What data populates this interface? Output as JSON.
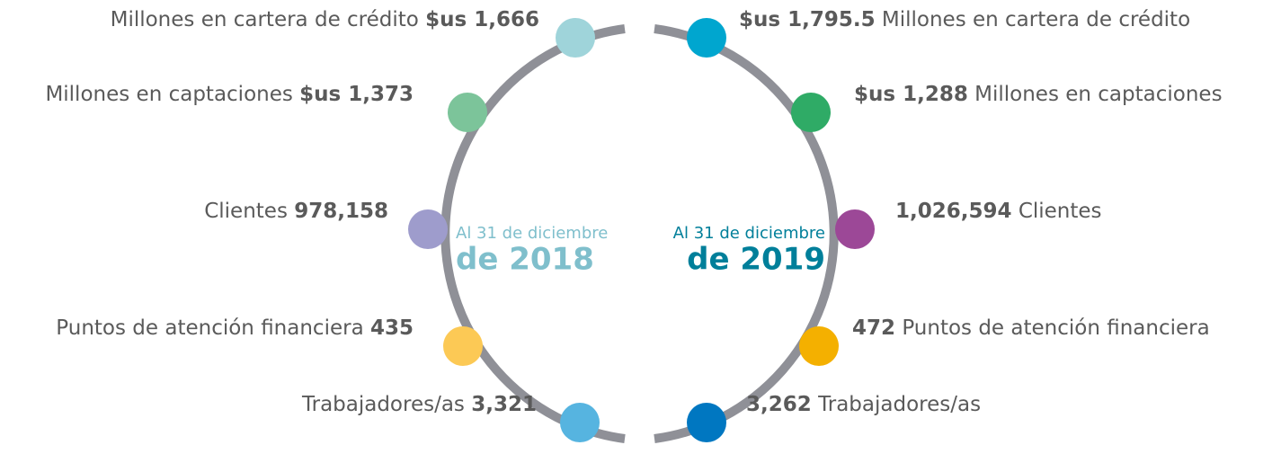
{
  "left": {
    "heading": "Al 31 de diciembre",
    "year": "de 2018",
    "items": [
      {
        "label": "Millones en cartera de crédito",
        "value": "$us 1,666"
      },
      {
        "label": "Millones en captaciones",
        "value": "$us 1,373"
      },
      {
        "label": "Clientes",
        "value": "978,158"
      },
      {
        "label": "Puntos de atención financiera ",
        "value": "435"
      },
      {
        "label": "Trabajadores/as",
        "value": "3,321"
      }
    ]
  },
  "right": {
    "heading": "Al 31 de diciembre",
    "year": "de 2019",
    "items": [
      {
        "label": "Millones en cartera de crédito",
        "value": "$us 1,795.5"
      },
      {
        "label": "Millones en captaciones",
        "value": "$us 1,288"
      },
      {
        "label": "Clientes",
        "value": "1,026,594"
      },
      {
        "label": "Puntos de atención financiera",
        "value": "472"
      },
      {
        "label": "Trabajadores/as",
        "value": "3,262"
      }
    ]
  }
}
